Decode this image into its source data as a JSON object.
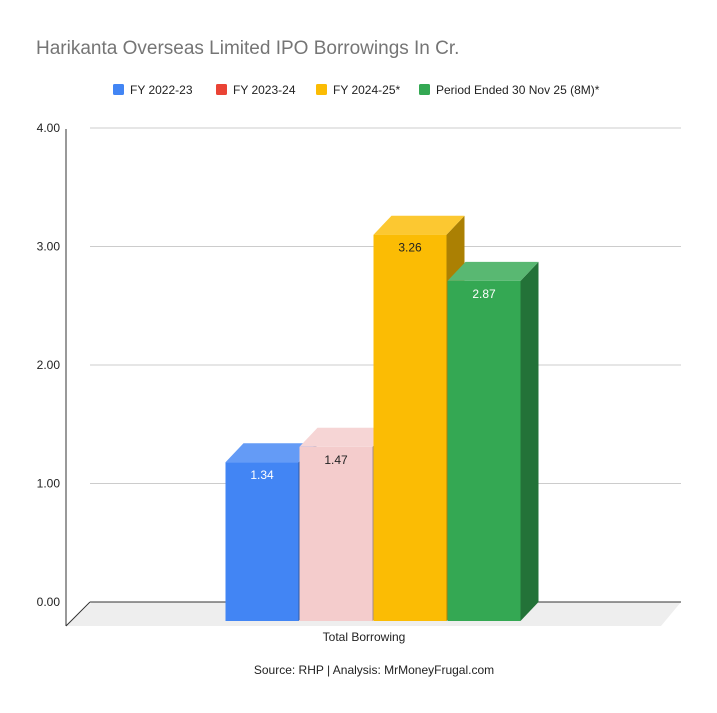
{
  "chart_data": {
    "type": "bar",
    "title": "Harikanta Overseas Limited IPO Borrowings In Cr.",
    "categories": [
      "Total Borrowing"
    ],
    "series": [
      {
        "name": "FY 2022-23",
        "values": [
          1.34
        ],
        "color": "#4285f4",
        "label_color": "#ffffff"
      },
      {
        "name": "FY 2023-24",
        "values": [
          1.47
        ],
        "color": "#f4cccc",
        "legend_color": "#ea4335",
        "label_color": "#222222"
      },
      {
        "name": "FY 2024-25*",
        "values": [
          3.26
        ],
        "color": "#fbbc04",
        "label_color": "#222222"
      },
      {
        "name": "Period Ended 30 Nov 25 (8M)*",
        "values": [
          2.87
        ],
        "color": "#34a853",
        "label_color": "#ffffff"
      }
    ],
    "yticks": [
      "0.00",
      "1.00",
      "2.00",
      "3.00",
      "4.00"
    ],
    "ylim": [
      0,
      4
    ],
    "grid": true,
    "legend_position": "top",
    "three_d": true,
    "source": "Source: RHP | Analysis: MrMoneyFrugal.com"
  }
}
